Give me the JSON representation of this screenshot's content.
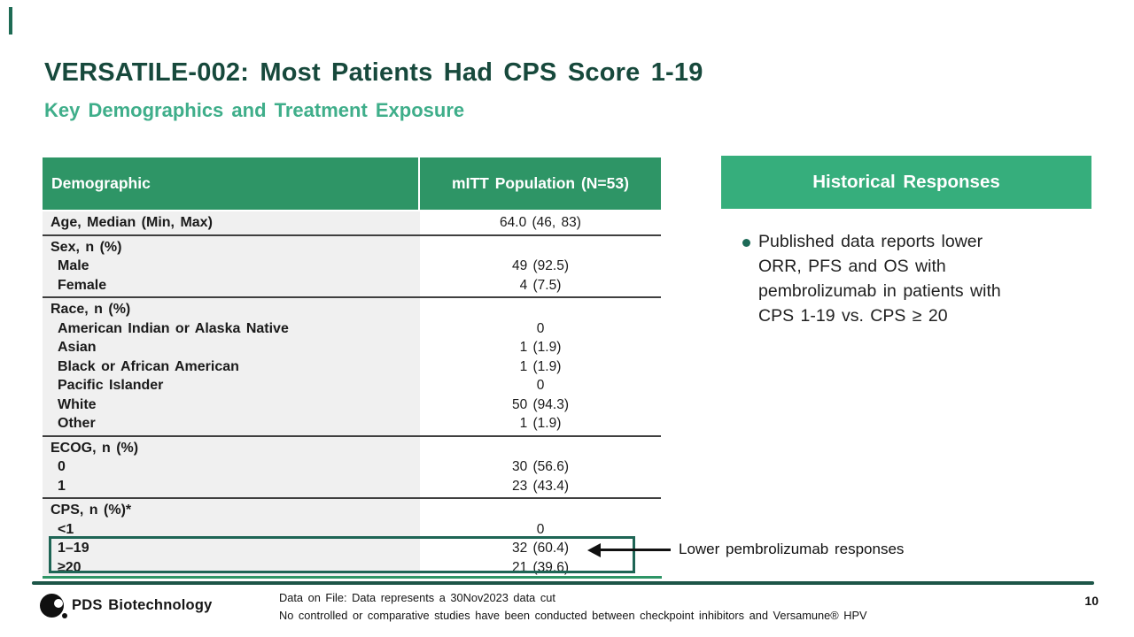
{
  "slide": {
    "title": "VERSATILE-002: Most Patients Had CPS Score 1-19",
    "subtitle": "Key Demographics and Treatment Exposure",
    "page_number": "10"
  },
  "table": {
    "headers": [
      "Demographic",
      "mITT Population (N=53)"
    ],
    "rows": [
      {
        "label": "Age, Median (Min, Max)",
        "value": "64.0 (46, 83)"
      },
      {
        "label": "Sex, n (%)",
        "value": ""
      },
      {
        "label": "Male",
        "value": "49 (92.5)"
      },
      {
        "label": "Female",
        "value": "4 (7.5)"
      },
      {
        "label": "Race, n (%)",
        "value": ""
      },
      {
        "label": "American Indian or Alaska Native",
        "value": "0"
      },
      {
        "label": "Asian",
        "value": "1 (1.9)"
      },
      {
        "label": "Black or African American",
        "value": "1 (1.9)"
      },
      {
        "label": "Pacific Islander",
        "value": "0"
      },
      {
        "label": "White",
        "value": "50 (94.3)"
      },
      {
        "label": "Other",
        "value": "1 (1.9)"
      },
      {
        "label": "ECOG, n (%)",
        "value": ""
      },
      {
        "label": "0",
        "value": "30 (56.6)"
      },
      {
        "label": "1",
        "value": "23 (43.4)"
      },
      {
        "label": "CPS, n (%)*",
        "value": ""
      },
      {
        "label": "<1",
        "value": "0"
      },
      {
        "label": "1–19",
        "value": "32 (60.4)"
      },
      {
        "label": "≥20",
        "value": "21 (39.6)"
      }
    ]
  },
  "annotation": {
    "note": "Lower pembrolizumab responses"
  },
  "panel": {
    "title": "Historical Responses",
    "bullet": "Published data reports lower\nORR, PFS and OS with\npembrolizumab in patients with\nCPS 1-19 vs. CPS ≥ 20"
  },
  "footer": {
    "brand": "PDS Biotechnology",
    "note_line1": "Data on File: Data represents a 30Nov2023 data cut",
    "note_line2": "No controlled or comparative studies have been conducted between checkpoint inhibitors and Versamune® HPV"
  },
  "colors": {
    "table_header_green": "#2E9566",
    "panel_green": "#36AE7C",
    "title_dark_green": "#17493C",
    "subtitle_green": "#3FAE8A",
    "footer_rule_green": "#1C5547",
    "table_underline_green": "#2E9566",
    "highlight_border_green": "#1E6555",
    "row_background_gray": "#F0F0F0"
  },
  "icons": {
    "logo": "pds-biotechnology-logo",
    "bullet": "bullet-dot",
    "arrow": "left-arrow"
  }
}
